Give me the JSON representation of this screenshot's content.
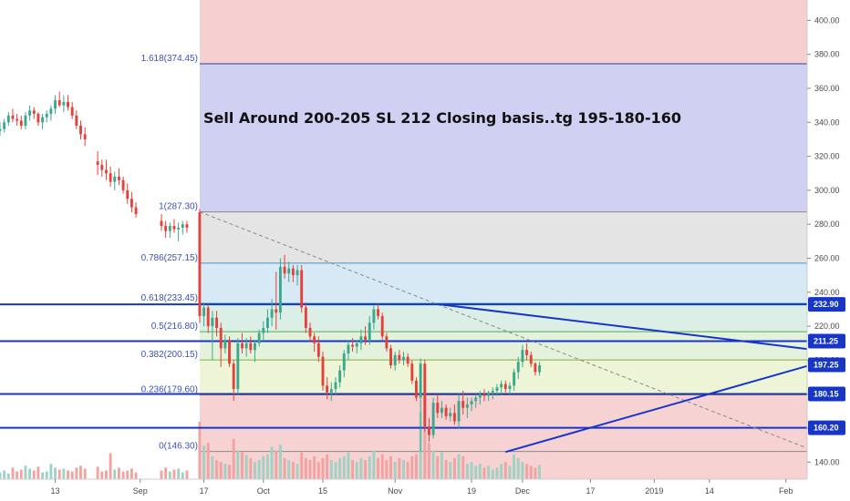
{
  "chart_data": {
    "type": "candlestick",
    "annotation": "Sell Around 200-205 SL 212 Closing basis..tg 195-180-160",
    "ylim": [
      130,
      412
    ],
    "y_ticks": [
      "140.00",
      "160.00",
      "180.00",
      "200.00",
      "220.00",
      "240.00",
      "260.00",
      "280.00",
      "300.00",
      "320.00",
      "340.00",
      "360.00",
      "380.00",
      "400.00"
    ],
    "x_ticks": [
      {
        "label": "13",
        "day": 13
      },
      {
        "label": "Sep",
        "day": 33
      },
      {
        "label": "17",
        "day": 48
      },
      {
        "label": "Oct",
        "day": 62
      },
      {
        "label": "15",
        "day": 76
      },
      {
        "label": "Nov",
        "day": 93
      },
      {
        "label": "19",
        "day": 111
      },
      {
        "label": "Dec",
        "day": 123
      },
      {
        "label": "17",
        "day": 139
      },
      {
        "label": "2019",
        "day": 154
      },
      {
        "label": "14",
        "day": 167
      },
      {
        "label": "Feb",
        "day": 185
      }
    ],
    "fib_levels": [
      {
        "label": "1.618(374.45)",
        "value": 374.45
      },
      {
        "label": "1(287.30)",
        "value": 287.3
      },
      {
        "label": "0.786(257.15)",
        "value": 257.15
      },
      {
        "label": "0.618(233.45)",
        "value": 233.45
      },
      {
        "label": "0.5(216.80)",
        "value": 216.8
      },
      {
        "label": "0.382(200.15)",
        "value": 200.15
      },
      {
        "label": "0.236(179.60)",
        "value": 179.6
      },
      {
        "label": "0(146.30)",
        "value": 146.3
      }
    ],
    "price_badges": [
      {
        "label": "232.90",
        "value": 232.9
      },
      {
        "label": "211.25",
        "value": 211.25
      },
      {
        "label": "197.25",
        "value": 197.25
      },
      {
        "label": "180.15",
        "value": 180.15
      },
      {
        "label": "160.20",
        "value": 160.2
      }
    ],
    "horizontal_lines": [
      232.9,
      211.25,
      180.15,
      160.2
    ],
    "trendlines": [
      {
        "from": [
          103,
          233
        ],
        "to": [
          192,
          206
        ]
      },
      {
        "from": [
          119,
          146
        ],
        "to": [
          192,
          198
        ]
      }
    ],
    "diagonal_dashed": {
      "from": [
        47,
        287.3
      ],
      "to": [
        192,
        146.3
      ]
    },
    "zone_start_day": 47,
    "candles": [
      [
        0,
        335,
        340,
        332,
        336
      ],
      [
        1,
        336,
        342,
        334,
        340
      ],
      [
        2,
        340,
        346,
        338,
        344
      ],
      [
        3,
        344,
        348,
        340,
        342
      ],
      [
        4,
        342,
        345,
        338,
        341
      ],
      [
        5,
        341,
        344,
        336,
        338
      ],
      [
        6,
        338,
        346,
        336,
        344
      ],
      [
        7,
        344,
        350,
        341,
        347
      ],
      [
        8,
        347,
        349,
        342,
        345
      ],
      [
        9,
        345,
        346,
        338,
        340
      ],
      [
        10,
        340,
        345,
        336,
        343
      ],
      [
        11,
        343,
        347,
        340,
        345
      ],
      [
        12,
        345,
        350,
        341,
        348
      ],
      [
        13,
        348,
        356,
        345,
        353
      ],
      [
        14,
        353,
        358,
        349,
        350
      ],
      [
        15,
        350,
        356,
        346,
        352
      ],
      [
        16,
        352,
        356,
        347,
        349
      ],
      [
        17,
        349,
        352,
        342,
        344
      ],
      [
        18,
        344,
        347,
        336,
        338
      ],
      [
        19,
        338,
        341,
        330,
        333
      ],
      [
        20,
        333,
        337,
        326,
        330
      ],
      [
        23,
        317,
        323,
        309,
        315
      ],
      [
        24,
        315,
        318,
        308,
        312
      ],
      [
        25,
        312,
        318,
        306,
        310
      ],
      [
        26,
        310,
        314,
        302,
        305
      ],
      [
        27,
        305,
        311,
        300,
        308
      ],
      [
        28,
        308,
        313,
        303,
        306
      ],
      [
        29,
        306,
        308,
        298,
        300
      ],
      [
        30,
        300,
        304,
        292,
        295
      ],
      [
        31,
        295,
        299,
        287,
        290
      ],
      [
        32,
        290,
        293,
        284,
        286
      ],
      [
        38,
        282,
        286,
        276,
        279
      ],
      [
        39,
        279,
        282,
        272,
        276
      ],
      [
        40,
        276,
        281,
        272,
        279
      ],
      [
        41,
        279,
        283,
        275,
        277
      ],
      [
        42,
        277,
        281,
        270,
        278
      ],
      [
        43,
        278,
        282,
        274,
        280
      ],
      [
        44,
        280,
        282,
        275,
        278
      ],
      [
        47,
        287,
        289,
        222,
        226
      ],
      [
        48,
        226,
        234,
        220,
        231
      ],
      [
        49,
        231,
        233,
        216,
        220
      ],
      [
        50,
        220,
        229,
        200,
        225
      ],
      [
        51,
        225,
        229,
        214,
        219
      ],
      [
        52,
        219,
        222,
        196,
        207
      ],
      [
        53,
        207,
        215,
        204,
        212
      ],
      [
        54,
        212,
        214,
        196,
        198
      ],
      [
        55,
        198,
        200,
        176,
        183
      ],
      [
        56,
        183,
        213,
        180,
        210
      ],
      [
        57,
        210,
        216,
        204,
        207
      ],
      [
        58,
        207,
        213,
        202,
        210
      ],
      [
        59,
        210,
        214,
        204,
        206
      ],
      [
        60,
        206,
        212,
        199,
        210
      ],
      [
        61,
        210,
        218,
        208,
        216
      ],
      [
        62,
        216,
        223,
        212,
        219
      ],
      [
        63,
        219,
        230,
        216,
        225
      ],
      [
        64,
        225,
        236,
        220,
        230
      ],
      [
        65,
        230,
        252,
        218,
        228
      ],
      [
        66,
        228,
        260,
        224,
        255
      ],
      [
        67,
        255,
        262,
        248,
        251
      ],
      [
        68,
        251,
        258,
        246,
        254
      ],
      [
        69,
        254,
        256,
        246,
        250
      ],
      [
        70,
        250,
        256,
        244,
        253
      ],
      [
        71,
        253,
        256,
        228,
        231
      ],
      [
        72,
        231,
        234,
        216,
        219
      ],
      [
        73,
        219,
        222,
        211,
        214
      ],
      [
        74,
        214,
        216,
        205,
        210
      ],
      [
        75,
        210,
        214,
        199,
        202
      ],
      [
        76,
        202,
        205,
        182,
        185
      ],
      [
        77,
        185,
        190,
        177,
        181
      ],
      [
        78,
        181,
        187,
        176,
        183
      ],
      [
        79,
        183,
        190,
        180,
        187
      ],
      [
        80,
        187,
        197,
        184,
        194
      ],
      [
        81,
        194,
        206,
        190,
        204
      ],
      [
        82,
        204,
        212,
        200,
        209
      ],
      [
        83,
        209,
        213,
        205,
        208
      ],
      [
        84,
        208,
        212,
        204,
        210
      ],
      [
        85,
        210,
        218,
        206,
        214
      ],
      [
        86,
        214,
        220,
        209,
        212
      ],
      [
        87,
        212,
        226,
        209,
        222
      ],
      [
        88,
        222,
        232,
        218,
        230
      ],
      [
        89,
        230,
        233,
        224,
        226
      ],
      [
        90,
        226,
        228,
        212,
        214
      ],
      [
        91,
        214,
        216,
        205,
        207
      ],
      [
        92,
        207,
        209,
        195,
        197
      ],
      [
        93,
        197,
        205,
        194,
        203
      ],
      [
        94,
        203,
        206,
        198,
        200
      ],
      [
        95,
        200,
        205,
        197,
        202
      ],
      [
        96,
        202,
        204,
        196,
        198
      ],
      [
        97,
        198,
        200,
        186,
        188
      ],
      [
        98,
        188,
        190,
        176,
        178
      ],
      [
        99,
        178,
        201,
        146,
        198
      ],
      [
        100,
        198,
        200,
        158,
        161
      ],
      [
        101,
        161,
        166,
        152,
        156
      ],
      [
        102,
        156,
        178,
        154,
        175
      ],
      [
        103,
        175,
        180,
        166,
        169
      ],
      [
        104,
        169,
        176,
        166,
        172
      ],
      [
        105,
        172,
        174,
        165,
        167
      ],
      [
        106,
        167,
        172,
        164,
        169
      ],
      [
        107,
        169,
        174,
        162,
        164
      ],
      [
        108,
        164,
        180,
        160,
        176
      ],
      [
        109,
        176,
        182,
        168,
        172
      ],
      [
        110,
        172,
        178,
        166,
        174
      ],
      [
        111,
        174,
        178,
        170,
        176
      ],
      [
        112,
        176,
        180,
        172,
        178
      ],
      [
        113,
        178,
        182,
        174,
        180
      ],
      [
        114,
        180,
        183,
        176,
        179
      ],
      [
        115,
        179,
        182,
        176,
        181
      ],
      [
        116,
        181,
        184,
        177,
        182
      ],
      [
        117,
        182,
        186,
        179,
        184
      ],
      [
        118,
        184,
        188,
        180,
        186
      ],
      [
        119,
        186,
        188,
        181,
        183
      ],
      [
        120,
        183,
        187,
        180,
        185
      ],
      [
        121,
        185,
        195,
        182,
        193
      ],
      [
        122,
        193,
        202,
        189,
        199
      ],
      [
        123,
        199,
        209,
        196,
        206
      ],
      [
        124,
        206,
        210,
        200,
        203
      ],
      [
        125,
        203,
        205,
        196,
        198
      ],
      [
        126,
        198,
        199,
        191,
        193
      ],
      [
        127,
        193,
        199,
        191,
        197
      ]
    ],
    "volumes": [
      [
        0,
        7
      ],
      [
        1,
        9
      ],
      [
        2,
        6
      ],
      [
        3,
        12
      ],
      [
        4,
        8
      ],
      [
        5,
        10
      ],
      [
        6,
        14
      ],
      [
        7,
        11
      ],
      [
        8,
        9
      ],
      [
        9,
        13
      ],
      [
        10,
        7
      ],
      [
        11,
        8
      ],
      [
        12,
        16
      ],
      [
        13,
        12
      ],
      [
        14,
        10
      ],
      [
        15,
        11
      ],
      [
        16,
        9
      ],
      [
        17,
        8
      ],
      [
        18,
        12
      ],
      [
        19,
        14
      ],
      [
        20,
        11
      ],
      [
        23,
        13
      ],
      [
        24,
        8
      ],
      [
        25,
        9
      ],
      [
        26,
        27
      ],
      [
        27,
        10
      ],
      [
        28,
        12
      ],
      [
        29,
        8
      ],
      [
        30,
        9
      ],
      [
        31,
        11
      ],
      [
        32,
        7
      ],
      [
        38,
        9
      ],
      [
        39,
        12
      ],
      [
        40,
        8
      ],
      [
        41,
        10
      ],
      [
        42,
        11
      ],
      [
        43,
        7
      ],
      [
        44,
        9
      ],
      [
        47,
        60
      ],
      [
        48,
        35
      ],
      [
        49,
        38
      ],
      [
        50,
        24
      ],
      [
        51,
        20
      ],
      [
        52,
        18
      ],
      [
        53,
        16
      ],
      [
        54,
        15
      ],
      [
        55,
        42
      ],
      [
        56,
        30
      ],
      [
        57,
        28
      ],
      [
        58,
        25
      ],
      [
        59,
        22
      ],
      [
        60,
        18
      ],
      [
        61,
        20
      ],
      [
        62,
        24
      ],
      [
        63,
        26
      ],
      [
        64,
        34
      ],
      [
        65,
        30
      ],
      [
        66,
        36
      ],
      [
        67,
        22
      ],
      [
        68,
        20
      ],
      [
        69,
        18
      ],
      [
        70,
        16
      ],
      [
        71,
        28
      ],
      [
        72,
        22
      ],
      [
        73,
        20
      ],
      [
        74,
        24
      ],
      [
        75,
        18
      ],
      [
        76,
        22
      ],
      [
        77,
        26
      ],
      [
        78,
        20
      ],
      [
        79,
        18
      ],
      [
        80,
        22
      ],
      [
        81,
        24
      ],
      [
        82,
        28
      ],
      [
        83,
        20
      ],
      [
        84,
        18
      ],
      [
        85,
        22
      ],
      [
        86,
        20
      ],
      [
        87,
        24
      ],
      [
        88,
        30
      ],
      [
        89,
        22
      ],
      [
        90,
        26
      ],
      [
        91,
        20
      ],
      [
        92,
        24
      ],
      [
        93,
        18
      ],
      [
        94,
        22
      ],
      [
        95,
        20
      ],
      [
        96,
        18
      ],
      [
        97,
        24
      ],
      [
        98,
        26
      ],
      [
        99,
        70
      ],
      [
        100,
        52
      ],
      [
        101,
        38
      ],
      [
        102,
        30
      ],
      [
        103,
        24
      ],
      [
        104,
        28
      ],
      [
        105,
        20
      ],
      [
        106,
        18
      ],
      [
        107,
        22
      ],
      [
        108,
        26
      ],
      [
        109,
        24
      ],
      [
        110,
        16
      ],
      [
        111,
        18
      ],
      [
        112,
        14
      ],
      [
        113,
        16
      ],
      [
        114,
        12
      ],
      [
        115,
        14
      ],
      [
        116,
        10
      ],
      [
        117,
        12
      ],
      [
        118,
        16
      ],
      [
        119,
        18
      ],
      [
        120,
        14
      ],
      [
        121,
        26
      ],
      [
        122,
        22
      ],
      [
        123,
        18
      ],
      [
        124,
        16
      ],
      [
        125,
        14
      ],
      [
        126,
        12
      ],
      [
        127,
        15
      ]
    ]
  },
  "colors": {
    "up": "#3aa88e",
    "down": "#e5403a",
    "vol_up": "#9fd2c5",
    "vol_down": "#f2a3a0",
    "fib_text": "#3b52b6",
    "badge": "#1736c8"
  }
}
